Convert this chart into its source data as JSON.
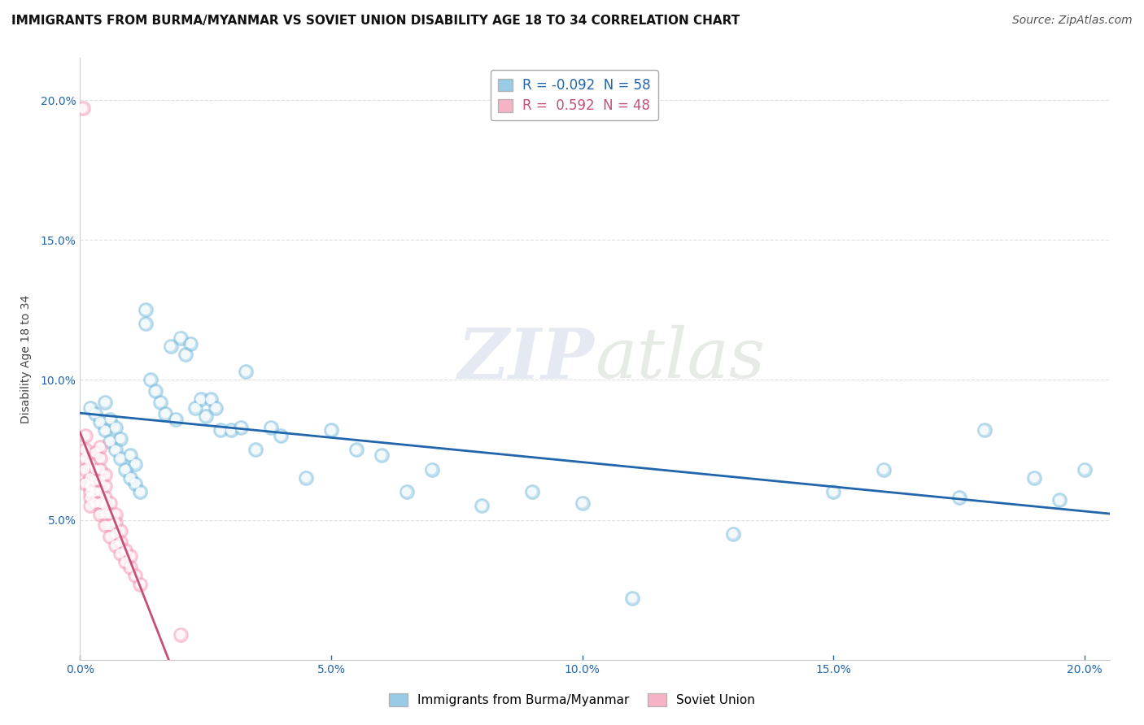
{
  "title": "IMMIGRANTS FROM BURMA/MYANMAR VS SOVIET UNION DISABILITY AGE 18 TO 34 CORRELATION CHART",
  "source": "Source: ZipAtlas.com",
  "ylabel_label": "Disability Age 18 to 34",
  "xlim": [
    0.0,
    0.205
  ],
  "ylim": [
    0.0,
    0.215
  ],
  "xticks": [
    0.0,
    0.05,
    0.1,
    0.15,
    0.2
  ],
  "yticks": [
    0.05,
    0.1,
    0.15,
    0.2
  ],
  "xticklabels": [
    "0.0%",
    "5.0%",
    "10.0%",
    "15.0%",
    "20.0%"
  ],
  "yticklabels": [
    "5.0%",
    "10.0%",
    "15.0%",
    "20.0%"
  ],
  "blue_color": "#7fbfdf",
  "pink_color": "#f4a0b8",
  "blue_line_color": "#2166ac",
  "pink_line_color": "#c4507a",
  "grid_color": "#dddddd",
  "background_color": "#ffffff",
  "title_fontsize": 11,
  "axis_label_fontsize": 10,
  "tick_fontsize": 10,
  "legend_fontsize": 11,
  "source_fontsize": 10,
  "blue_scatter_x": [
    0.002,
    0.003,
    0.004,
    0.005,
    0.005,
    0.006,
    0.006,
    0.007,
    0.007,
    0.008,
    0.008,
    0.009,
    0.01,
    0.01,
    0.011,
    0.011,
    0.012,
    0.013,
    0.013,
    0.014,
    0.015,
    0.016,
    0.017,
    0.018,
    0.019,
    0.02,
    0.021,
    0.022,
    0.023,
    0.024,
    0.025,
    0.026,
    0.027,
    0.028,
    0.03,
    0.032,
    0.033,
    0.035,
    0.038,
    0.04,
    0.045,
    0.05,
    0.055,
    0.06,
    0.065,
    0.07,
    0.08,
    0.09,
    0.1,
    0.11,
    0.13,
    0.15,
    0.16,
    0.175,
    0.18,
    0.19,
    0.195,
    0.2
  ],
  "blue_scatter_y": [
    0.09,
    0.088,
    0.085,
    0.082,
    0.092,
    0.078,
    0.086,
    0.075,
    0.083,
    0.072,
    0.079,
    0.068,
    0.065,
    0.073,
    0.063,
    0.07,
    0.06,
    0.12,
    0.125,
    0.1,
    0.096,
    0.092,
    0.088,
    0.112,
    0.086,
    0.115,
    0.109,
    0.113,
    0.09,
    0.093,
    0.087,
    0.093,
    0.09,
    0.082,
    0.082,
    0.083,
    0.103,
    0.075,
    0.083,
    0.08,
    0.065,
    0.082,
    0.075,
    0.073,
    0.06,
    0.068,
    0.055,
    0.06,
    0.056,
    0.022,
    0.045,
    0.06,
    0.068,
    0.058,
    0.082,
    0.065,
    0.057,
    0.068
  ],
  "pink_scatter_x": [
    0.0005,
    0.001,
    0.001,
    0.001,
    0.001,
    0.001,
    0.002,
    0.002,
    0.002,
    0.002,
    0.002,
    0.002,
    0.003,
    0.003,
    0.003,
    0.003,
    0.003,
    0.004,
    0.004,
    0.004,
    0.004,
    0.004,
    0.004,
    0.004,
    0.005,
    0.005,
    0.005,
    0.005,
    0.005,
    0.005,
    0.006,
    0.006,
    0.006,
    0.006,
    0.007,
    0.007,
    0.007,
    0.007,
    0.008,
    0.008,
    0.008,
    0.009,
    0.009,
    0.01,
    0.01,
    0.011,
    0.012,
    0.02
  ],
  "pink_scatter_y": [
    0.197,
    0.08,
    0.075,
    0.072,
    0.068,
    0.063,
    0.065,
    0.06,
    0.058,
    0.055,
    0.07,
    0.062,
    0.056,
    0.06,
    0.064,
    0.068,
    0.074,
    0.052,
    0.056,
    0.06,
    0.064,
    0.068,
    0.072,
    0.076,
    0.048,
    0.052,
    0.055,
    0.058,
    0.062,
    0.066,
    0.044,
    0.048,
    0.052,
    0.056,
    0.041,
    0.045,
    0.049,
    0.052,
    0.038,
    0.042,
    0.046,
    0.035,
    0.039,
    0.033,
    0.037,
    0.03,
    0.027,
    0.009
  ]
}
